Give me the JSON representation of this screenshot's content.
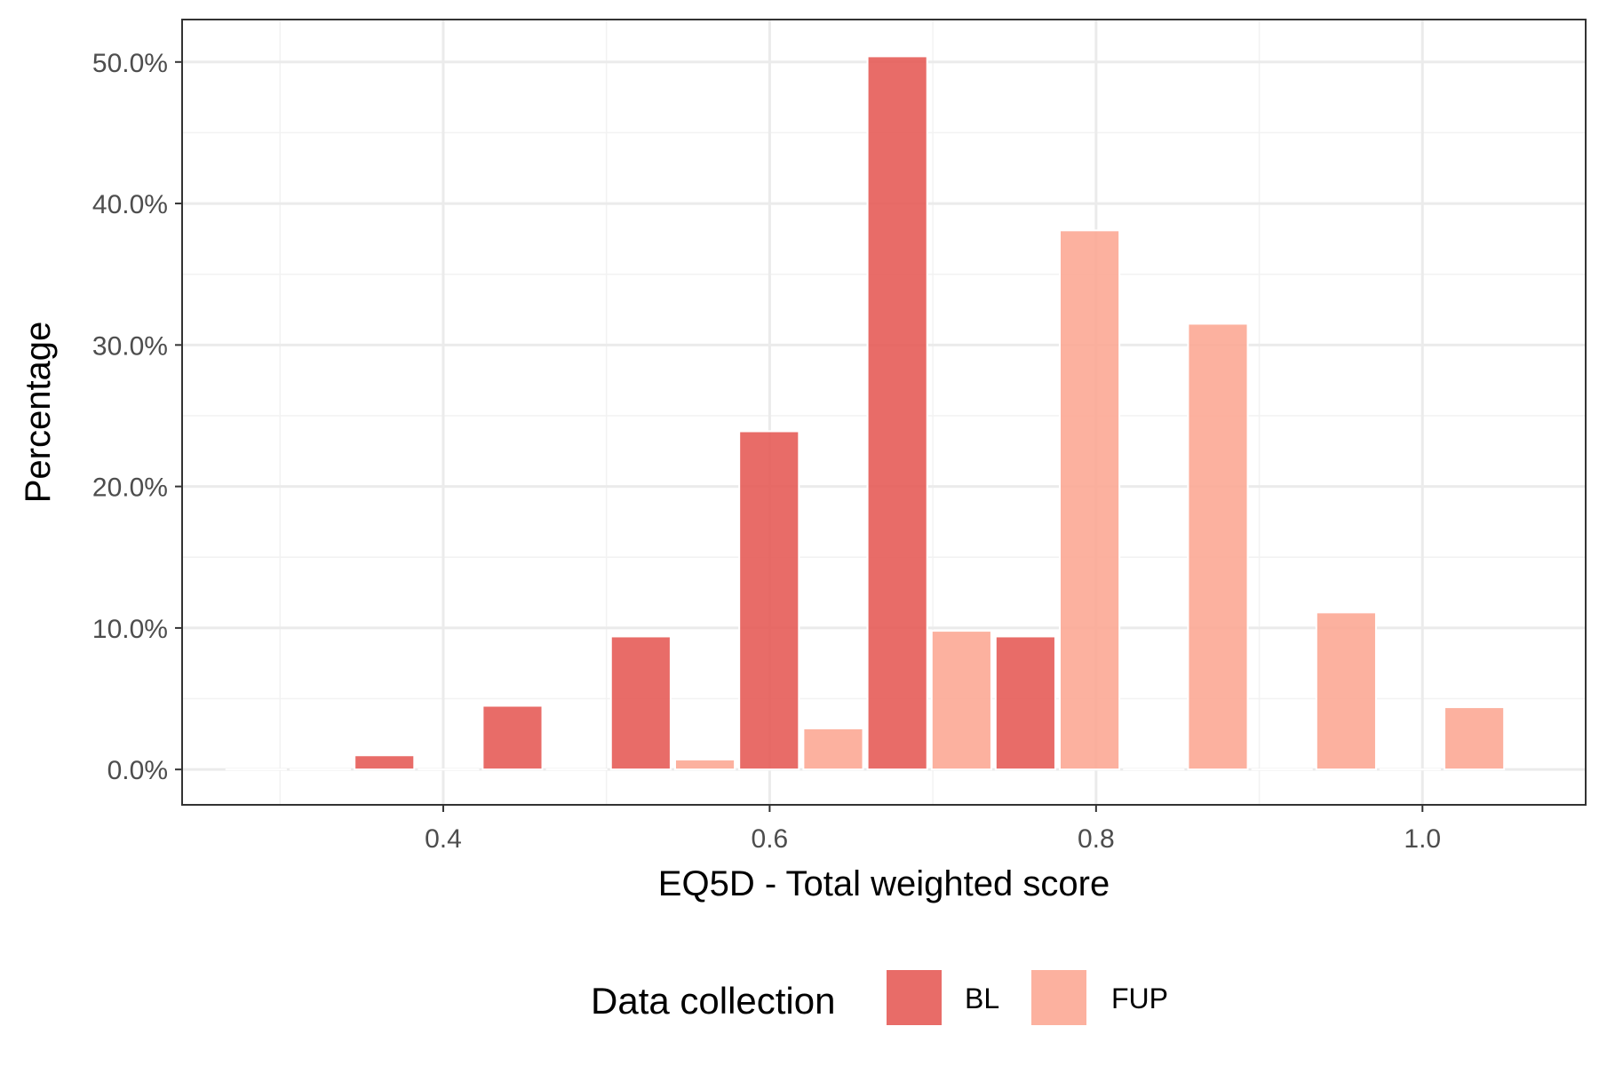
{
  "chart_data": {
    "type": "bar",
    "xlabel": "EQ5D - Total weighted score",
    "ylabel": "Percentage",
    "xlim": [
      0.24,
      1.1
    ],
    "ylim": [
      -0.025,
      0.53
    ],
    "x_ticks": [
      0.4,
      0.6,
      0.8,
      1.0
    ],
    "x_tick_labels": [
      "0.4",
      "0.6",
      "0.8",
      "1.0"
    ],
    "y_ticks": [
      0,
      0.1,
      0.2,
      0.3,
      0.4,
      0.5
    ],
    "y_tick_labels": [
      "0.0%",
      "10.0%",
      "20.0%",
      "30.0%",
      "40.0%",
      "50.0%"
    ],
    "bin_width": 0.0786,
    "grid": true,
    "legend": {
      "title": "Data collection",
      "position": "bottom"
    },
    "series": [
      {
        "name": "BL",
        "color": "#E65C58",
        "x": [
          0.305,
          0.3836,
          0.4621,
          0.5407,
          0.6193,
          0.6979,
          0.7764,
          0.855,
          0.9336,
          1.0121
        ],
        "values": [
          0.0,
          0.01,
          0.045,
          0.094,
          0.239,
          0.504,
          0.094,
          0.0,
          0.0,
          0.0
        ]
      },
      {
        "name": "FUP",
        "color": "#FCA995",
        "x": [
          0.305,
          0.3836,
          0.4621,
          0.5407,
          0.6193,
          0.6979,
          0.7764,
          0.855,
          0.9336,
          1.0121
        ],
        "values": [
          0.0,
          0.0,
          0.0,
          0.007,
          0.029,
          0.098,
          0.381,
          0.315,
          0.111,
          0.044
        ]
      }
    ]
  }
}
